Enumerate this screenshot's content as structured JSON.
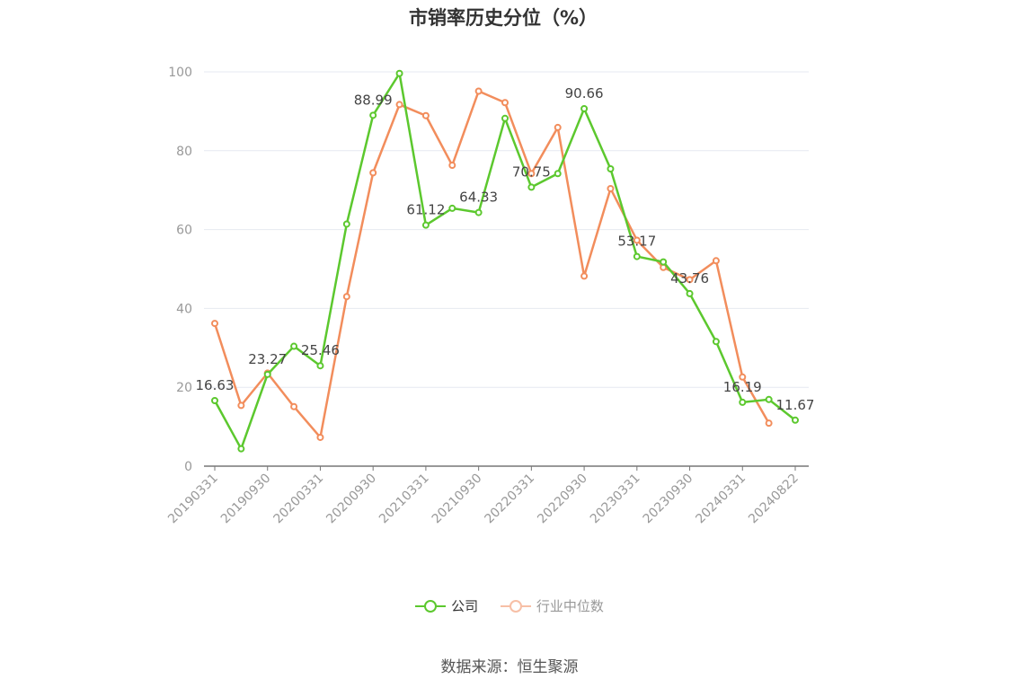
{
  "chart_data": {
    "type": "line",
    "title": "市销率历史分位（%）",
    "xlabel": "",
    "ylabel": "",
    "ylim": [
      0,
      100
    ],
    "yticks": [
      0,
      20,
      40,
      60,
      80,
      100
    ],
    "grid": true,
    "legend_position": "bottom",
    "x_tick_labels": [
      "20190331",
      "20190930",
      "20200331",
      "20200930",
      "20210331",
      "20210930",
      "20220331",
      "20220930",
      "20230331",
      "20230930",
      "20240331",
      "20240822"
    ],
    "series": [
      {
        "name": "公司",
        "color": "#5cc82e",
        "values": [
          16.63,
          4.4,
          23.27,
          30.4,
          25.46,
          61.4,
          88.99,
          99.6,
          61.12,
          65.4,
          64.33,
          88.2,
          70.75,
          74.2,
          90.66,
          75.4,
          53.17,
          51.8,
          43.76,
          31.6,
          16.19,
          16.9,
          11.67
        ],
        "labels": {
          "0": "16.63",
          "2": "23.27",
          "4": "25.46",
          "6": "88.99",
          "8": "61.12",
          "10": "64.33",
          "12": "70.75",
          "14": "90.66",
          "16": "53.17",
          "18": "43.76",
          "20": "16.19",
          "22": "11.67"
        }
      },
      {
        "name": "行业中位数",
        "color": "#f28d5c",
        "values": [
          36.2,
          15.4,
          23.6,
          15.1,
          7.3,
          43.0,
          74.4,
          91.7,
          88.9,
          76.3,
          95.1,
          92.2,
          74.2,
          85.9,
          48.2,
          70.4,
          57.3,
          50.4,
          47.3,
          52.1,
          22.6,
          10.9,
          null
        ]
      }
    ]
  },
  "legend": {
    "company_label": "公司",
    "industry_label": "行业中位数"
  },
  "source_text": "数据来源：恒生聚源"
}
